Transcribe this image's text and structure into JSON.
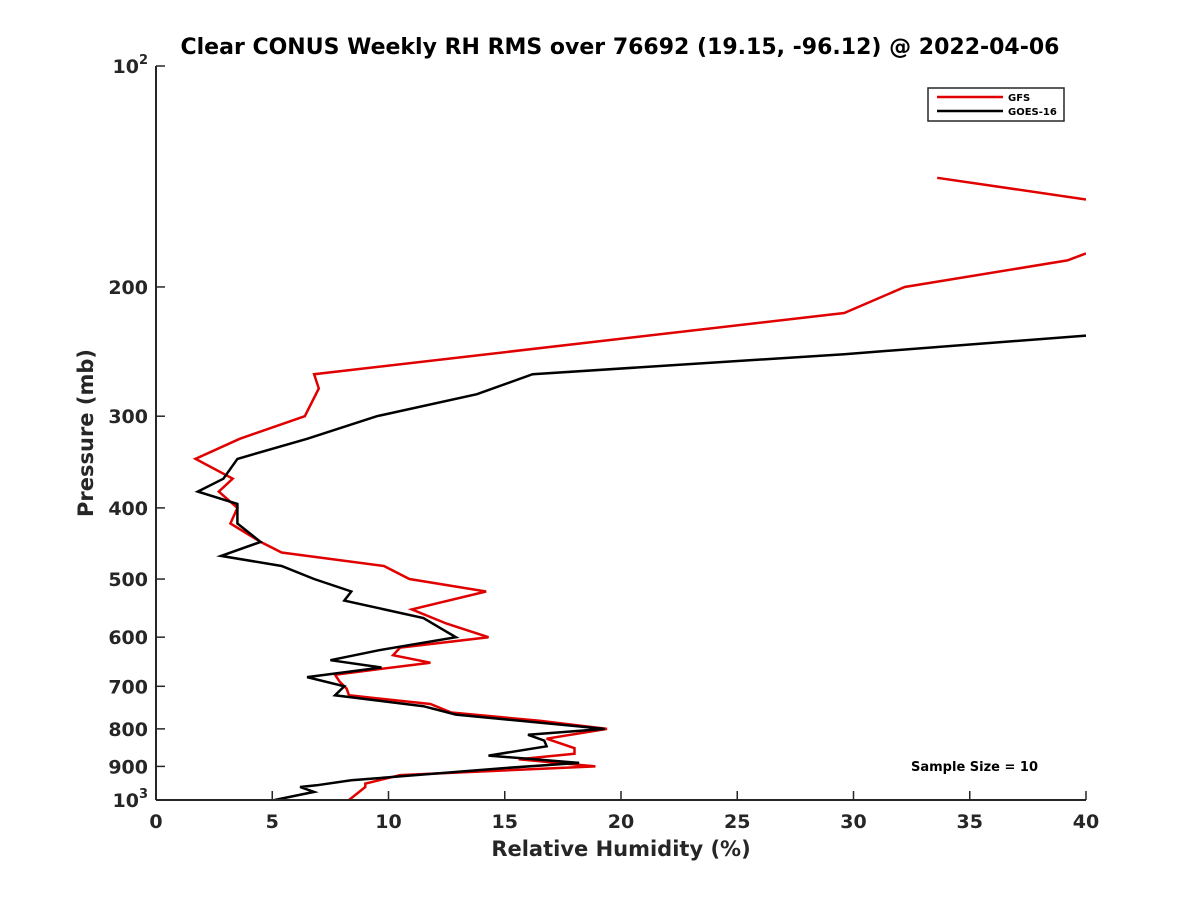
{
  "chart_data": {
    "type": "line",
    "title": "Clear CONUS Weekly RH RMS over 76692 (19.15, -96.12) @ 2022-04-06",
    "xlabel": "Relative Humidity (%)",
    "ylabel": "Pressure (mb)",
    "xlim": [
      0,
      40
    ],
    "ylim": [
      100,
      1000
    ],
    "yscale": "log",
    "y_reversed": true,
    "x_ticks": [
      0,
      5,
      10,
      15,
      20,
      25,
      30,
      35,
      40
    ],
    "x_tick_labels": [
      "0",
      "5",
      "10",
      "15",
      "20",
      "25",
      "30",
      "35",
      "40"
    ],
    "y_ticks": [
      100,
      200,
      300,
      400,
      500,
      600,
      700,
      800,
      900,
      1000
    ],
    "y_tick_labels": [
      {
        "base": "10",
        "exp": "2"
      },
      {
        "text": "200"
      },
      {
        "text": "300"
      },
      {
        "text": "400"
      },
      {
        "text": "500"
      },
      {
        "text": "600"
      },
      {
        "text": "700"
      },
      {
        "text": "800"
      },
      {
        "text": "900"
      },
      {
        "base": "10",
        "exp": "3"
      }
    ],
    "grid": false,
    "legend_position": "top-right",
    "series": [
      {
        "name": "GFS",
        "color": "#e00000",
        "segments": [
          [
            [
              33.6,
              142
            ],
            [
              40.0,
              152
            ]
          ],
          [
            [
              40.0,
              180
            ],
            [
              39.2,
              184
            ],
            [
              32.2,
              200
            ],
            [
              29.6,
              217
            ],
            [
              6.8,
              263
            ],
            [
              7.0,
              275
            ],
            [
              6.4,
              300
            ],
            [
              3.6,
              322
            ],
            [
              1.7,
              343
            ],
            [
              3.3,
              365
            ],
            [
              2.7,
              380
            ],
            [
              3.5,
              400
            ],
            [
              3.2,
              420
            ],
            [
              4.5,
              445
            ],
            [
              5.4,
              460
            ],
            [
              9.8,
              480
            ],
            [
              10.9,
              500
            ],
            [
              14.2,
              520
            ],
            [
              11.0,
              550
            ],
            [
              12.5,
              575
            ],
            [
              14.3,
              600
            ],
            [
              10.5,
              620
            ],
            [
              10.2,
              635
            ],
            [
              11.8,
              650
            ],
            [
              7.7,
              675
            ],
            [
              7.9,
              690
            ],
            [
              8.2,
              705
            ],
            [
              8.3,
              720
            ],
            [
              11.8,
              740
            ],
            [
              12.7,
              760
            ],
            [
              16.5,
              780
            ],
            [
              19.4,
              800
            ],
            [
              16.8,
              825
            ],
            [
              18.0,
              850
            ],
            [
              18.0,
              865
            ],
            [
              15.6,
              880
            ],
            [
              18.9,
              900
            ],
            [
              10.5,
              925
            ],
            [
              9.0,
              950
            ],
            [
              9.0,
              960
            ],
            [
              8.3,
              1000
            ]
          ]
        ]
      },
      {
        "name": "GOES-16",
        "color": "#000000",
        "segments": [
          [
            [
              40.0,
              233
            ],
            [
              29.6,
              247
            ],
            [
              16.2,
              263
            ],
            [
              13.8,
              280
            ],
            [
              9.5,
              300
            ],
            [
              6.5,
              322
            ],
            [
              3.5,
              343
            ],
            [
              2.9,
              365
            ],
            [
              1.8,
              380
            ],
            [
              3.5,
              395
            ],
            [
              3.5,
              420
            ],
            [
              4.5,
              445
            ],
            [
              2.8,
              465
            ],
            [
              5.4,
              480
            ],
            [
              6.8,
              500
            ],
            [
              8.4,
              520
            ],
            [
              8.1,
              535
            ],
            [
              11.5,
              565
            ],
            [
              12.3,
              585
            ],
            [
              12.9,
              600
            ],
            [
              9.6,
              625
            ],
            [
              7.5,
              645
            ],
            [
              9.7,
              660
            ],
            [
              6.5,
              680
            ],
            [
              8.1,
              700
            ],
            [
              7.7,
              720
            ],
            [
              11.5,
              745
            ],
            [
              12.9,
              765
            ],
            [
              19.3,
              800
            ],
            [
              16.0,
              815
            ],
            [
              16.7,
              830
            ],
            [
              16.8,
              845
            ],
            [
              14.3,
              870
            ],
            [
              18.2,
              890
            ],
            [
              14.9,
              905
            ],
            [
              8.4,
              940
            ],
            [
              6.9,
              955
            ],
            [
              6.2,
              960
            ],
            [
              6.8,
              975
            ],
            [
              5.1,
              1000
            ]
          ]
        ]
      }
    ],
    "legend": [
      "GFS",
      "GOES-16"
    ],
    "annotations": [
      "Sample Size = 10"
    ]
  }
}
